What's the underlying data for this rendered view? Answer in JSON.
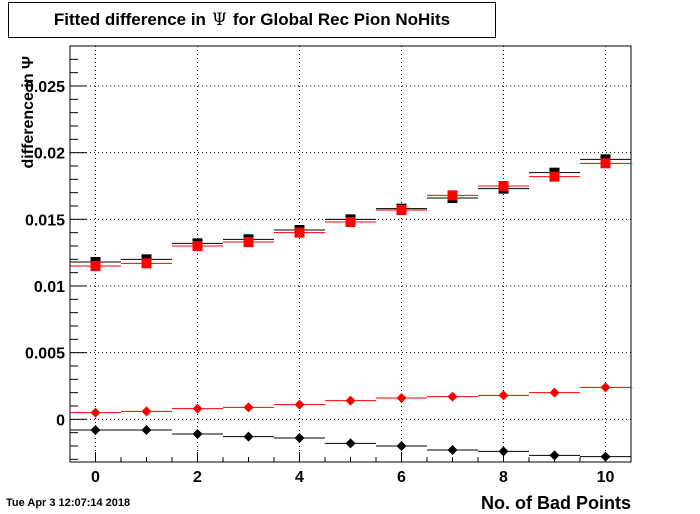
{
  "title": {
    "prefix": "Fitted difference in",
    "greek": "Ψ",
    "suffix": "for Global Rec Pion NoHits"
  },
  "timestamp": "Tue Apr  3 12:07:14 2018",
  "chart_data": {
    "type": "scatter",
    "title": "Fitted difference in Ψ for Global Rec Pion NoHits",
    "xlabel": "No. of Bad Points",
    "ylabel": "difference in Ψ",
    "xlim": [
      -0.5,
      10.5
    ],
    "ylim": [
      -0.0032,
      0.028
    ],
    "grid": true,
    "xticks": [
      0,
      2,
      4,
      6,
      8,
      10
    ],
    "xtick_labels": [
      "0",
      "2",
      "4",
      "6",
      "8",
      "10"
    ],
    "yticks": [
      0,
      0.005,
      0.01,
      0.015,
      0.02,
      0.025
    ],
    "ytick_labels": [
      "0",
      "0.005",
      "0.01",
      "0.015",
      "0.02",
      "0.025"
    ],
    "x": [
      0,
      1,
      2,
      3,
      4,
      5,
      6,
      7,
      8,
      9,
      10
    ],
    "series": [
      {
        "marker": "square",
        "color": "#000000",
        "values": [
          0.0118,
          0.012,
          0.0132,
          0.0135,
          0.0142,
          0.015,
          0.0158,
          0.0166,
          0.0173,
          0.0185,
          0.0195
        ]
      },
      {
        "marker": "square",
        "color": "#ff0000",
        "values": [
          0.0115,
          0.0117,
          0.013,
          0.0133,
          0.014,
          0.0148,
          0.0157,
          0.0168,
          0.0175,
          0.0182,
          0.0192
        ]
      },
      {
        "marker": "diamond",
        "color": "#ff0000",
        "values": [
          0.0005,
          0.0006,
          0.0008,
          0.0009,
          0.0011,
          0.0014,
          0.0016,
          0.0017,
          0.0018,
          0.002,
          0.0024
        ]
      },
      {
        "marker": "diamond",
        "color": "#000000",
        "values": [
          -0.0008,
          -0.0008,
          -0.0011,
          -0.0013,
          -0.0014,
          -0.0018,
          -0.002,
          -0.0023,
          -0.0024,
          -0.0027,
          -0.0028
        ]
      }
    ]
  }
}
